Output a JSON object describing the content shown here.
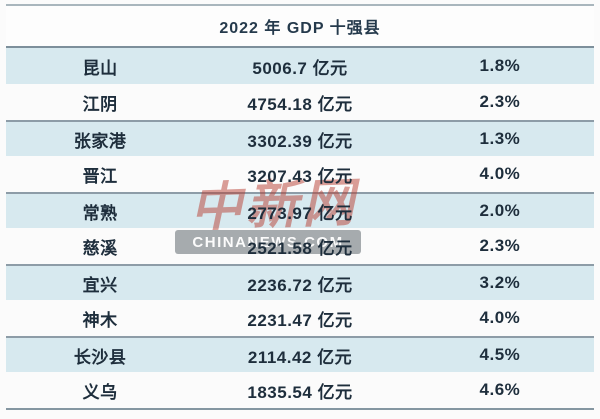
{
  "table": {
    "title": "2022 年 GDP 十强县",
    "rows": [
      {
        "county": "昆山",
        "gdp": "5006.7 亿元",
        "growth": "1.8%",
        "highlight": true
      },
      {
        "county": "江阴",
        "gdp": "4754.18 亿元",
        "growth": "2.3%",
        "highlight": false
      },
      {
        "county": "张家港",
        "gdp": "3302.39 亿元",
        "growth": "1.3%",
        "highlight": true
      },
      {
        "county": "晋江",
        "gdp": "3207.43 亿元",
        "growth": "4.0%",
        "highlight": false
      },
      {
        "county": "常熟",
        "gdp": "2773.97 亿元",
        "growth": "2.0%",
        "highlight": true
      },
      {
        "county": "慈溪",
        "gdp": "2521.58 亿元",
        "growth": "2.3%",
        "highlight": false
      },
      {
        "county": "宜兴",
        "gdp": "2236.72 亿元",
        "growth": "3.2%",
        "highlight": true
      },
      {
        "county": "神木",
        "gdp": "2231.47 亿元",
        "growth": "4.0%",
        "highlight": false
      },
      {
        "county": "长沙县",
        "gdp": "2114.42 亿元",
        "growth": "4.5%",
        "highlight": true
      },
      {
        "county": "义乌",
        "gdp": "1835.54 亿元",
        "growth": "4.6%",
        "highlight": false
      }
    ]
  },
  "watermark": {
    "cn": "中新网",
    "en": "CHINANEWS.COM"
  },
  "colors": {
    "highlight_row": "#d7e9ef",
    "border_outer": "#a9b6bd",
    "border_inner": "#8d9ca7",
    "text": "#1e2e3c",
    "title_text": "#253a4c",
    "watermark_red": "#b83e32",
    "watermark_band": "#969ca0"
  },
  "chart_data": {
    "type": "table",
    "title": "2022 年 GDP 十强县",
    "columns": [
      "county",
      "gdp",
      "growth_rate"
    ],
    "rows": [
      [
        "昆山",
        "5006.7 亿元",
        "1.8%"
      ],
      [
        "江阴",
        "4754.18 亿元",
        "2.3%"
      ],
      [
        "张家港",
        "3302.39 亿元",
        "1.3%"
      ],
      [
        "晋江",
        "3207.43 亿元",
        "4.0%"
      ],
      [
        "常熟",
        "2773.97 亿元",
        "2.0%"
      ],
      [
        "慈溪",
        "2521.58 亿元",
        "2.3%"
      ],
      [
        "宜兴",
        "2236.72 亿元",
        "3.2%"
      ],
      [
        "神木",
        "2231.47 亿元",
        "4.0%"
      ],
      [
        "长沙县",
        "2114.42 亿元",
        "4.5%"
      ],
      [
        "义乌",
        "1835.54 亿元",
        "4.6%"
      ]
    ],
    "counties": [
      "昆山",
      "江阴",
      "张家港",
      "晋江",
      "常熟",
      "慈溪",
      "宜兴",
      "神木",
      "长沙县",
      "义乌"
    ],
    "gdp_values_yi_yuan": [
      5006.7,
      4754.18,
      3302.39,
      3207.43,
      2773.97,
      2521.58,
      2236.72,
      2231.47,
      2114.42,
      1835.54
    ],
    "growth_pct": [
      1.8,
      2.3,
      1.3,
      4.0,
      2.0,
      2.3,
      3.2,
      4.0,
      4.5,
      4.6
    ]
  }
}
